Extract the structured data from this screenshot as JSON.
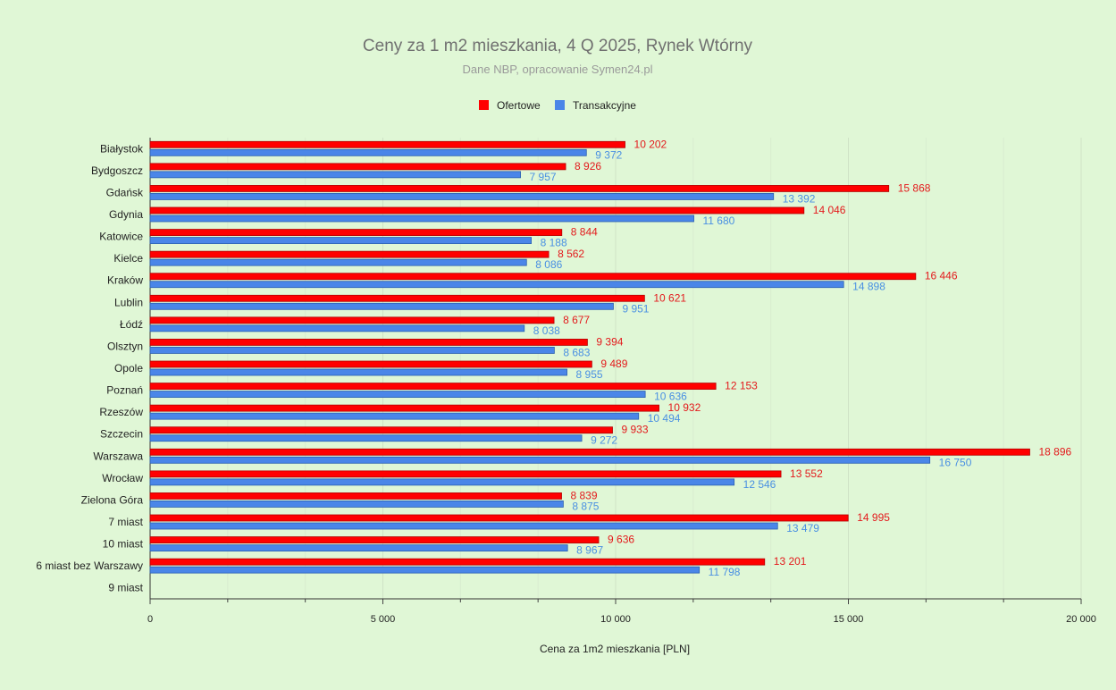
{
  "chart_data": {
    "type": "bar",
    "orientation": "horizontal",
    "title": "Ceny za 1 m2 mieszkania, 4  Q 2025, Rynek Wtórny",
    "subtitle": "Dane NBP, opracowanie Symen24.pl",
    "xlabel": "Cena za 1m2 mieszkania [PLN]",
    "ylabel": "",
    "xlim": [
      0,
      20000
    ],
    "xticks": [
      0,
      5000,
      10000,
      15000,
      20000
    ],
    "xtick_labels": [
      "0",
      "5 000",
      "10 000",
      "15 000",
      "20 000"
    ],
    "legend_position": "top",
    "grid": true,
    "categories": [
      "Białystok",
      "Bydgoszcz",
      "Gdańsk",
      "Gdynia",
      "Katowice",
      "Kielce",
      "Kraków",
      "Lublin",
      "Łódź",
      "Olsztyn",
      "Opole",
      "Poznań",
      "Rzeszów",
      "Szczecin",
      "Warszawa",
      "Wrocław",
      "Zielona Góra",
      "7 miast",
      "10 miast",
      "6 miast bez Warszawy",
      "9 miast"
    ],
    "series": [
      {
        "name": "Ofertowe",
        "color": "#ff0000",
        "values": [
          10202,
          8926,
          15868,
          14046,
          8844,
          8562,
          16446,
          10621,
          8677,
          9394,
          9489,
          12153,
          10932,
          9933,
          18896,
          13552,
          8839,
          14995,
          9636,
          13201,
          null
        ],
        "labels": [
          "10 202",
          "8 926",
          "15 868",
          "14 046",
          "8 844",
          "8 562",
          "16 446",
          "10 621",
          "8 677",
          "9 394",
          "9 489",
          "12 153",
          "10 932",
          "9 933",
          "18 896",
          "13 552",
          "8 839",
          "14 995",
          "9 636",
          "13 201",
          ""
        ]
      },
      {
        "name": "Transakcyjne",
        "color": "#4a86e8",
        "values": [
          9372,
          7957,
          13392,
          11680,
          8188,
          8086,
          14898,
          9951,
          8038,
          8683,
          8955,
          10636,
          10494,
          9272,
          16750,
          12546,
          8875,
          13479,
          8967,
          11798,
          null
        ],
        "labels": [
          "9 372",
          "7 957",
          "13 392",
          "11 680",
          "8 188",
          "8 086",
          "14 898",
          "9 951",
          "8 038",
          "8 683",
          "8 955",
          "10 636",
          "10 494",
          "9 272",
          "16 750",
          "12 546",
          "8 875",
          "13 479",
          "8 967",
          "11 798",
          ""
        ]
      }
    ]
  }
}
